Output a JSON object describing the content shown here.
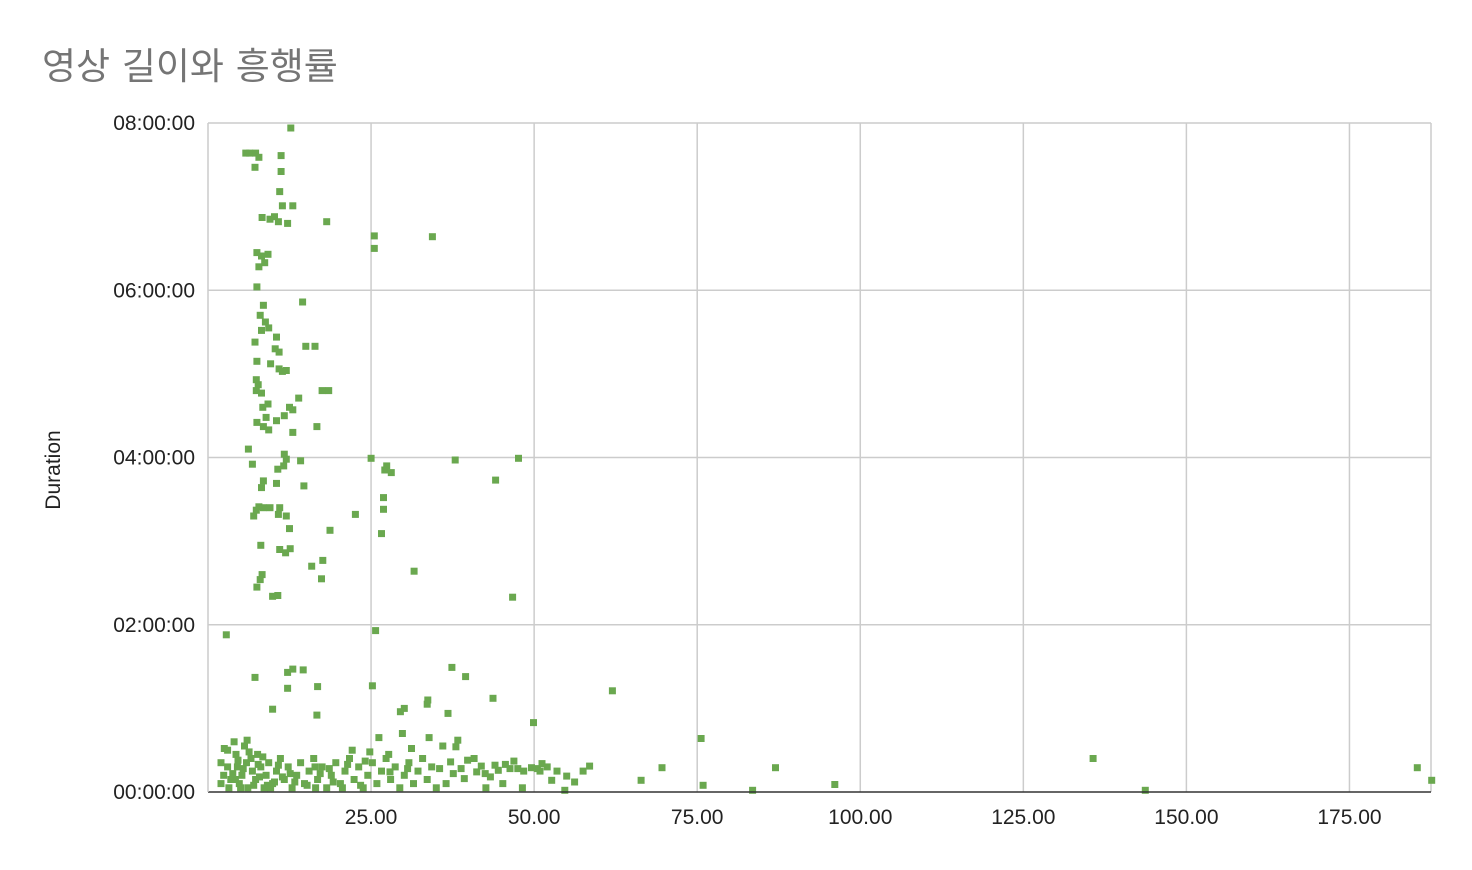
{
  "chart_data": {
    "type": "scatter",
    "title": "영상 길이와 흥행률",
    "xlabel": "",
    "ylabel": "Duration",
    "xlim": [
      0,
      187.5
    ],
    "ylim": [
      0,
      8
    ],
    "x_tick_labels": [
      "25.00",
      "50.00",
      "75.00",
      "100.00",
      "125.00",
      "150.00",
      "175.00"
    ],
    "y_tick_labels": [
      "00:00:00",
      "02:00:00",
      "04:00:00",
      "06:00:00",
      "08:00:00"
    ],
    "grid": true,
    "legend": "none",
    "marker_color": "#6aa84f",
    "series": [
      {
        "values": [
          [
            5.8,
            7.64
          ],
          [
            6.4,
            7.64
          ],
          [
            7.3,
            7.64
          ],
          [
            7.8,
            7.59
          ],
          [
            7.2,
            7.47
          ],
          [
            11.2,
            7.61
          ],
          [
            11.2,
            7.42
          ],
          [
            12.7,
            7.94
          ],
          [
            11,
            7.18
          ],
          [
            11.4,
            7.01
          ],
          [
            13,
            7.01
          ],
          [
            8.3,
            6.87
          ],
          [
            9.5,
            6.85
          ],
          [
            10.2,
            6.88
          ],
          [
            10.8,
            6.82
          ],
          [
            12.2,
            6.8
          ],
          [
            18.2,
            6.82
          ],
          [
            25.5,
            6.65
          ],
          [
            25.5,
            6.5
          ],
          [
            34.4,
            6.64
          ],
          [
            7.5,
            6.45
          ],
          [
            8.2,
            6.41
          ],
          [
            9.2,
            6.43
          ],
          [
            8.7,
            6.33
          ],
          [
            7.8,
            6.28
          ],
          [
            7.5,
            6.04
          ],
          [
            8.5,
            5.82
          ],
          [
            14.5,
            5.86
          ],
          [
            8,
            5.7
          ],
          [
            8.8,
            5.62
          ],
          [
            8.2,
            5.52
          ],
          [
            9.3,
            5.55
          ],
          [
            7.2,
            5.38
          ],
          [
            10.5,
            5.44
          ],
          [
            10.3,
            5.3
          ],
          [
            10.9,
            5.26
          ],
          [
            15,
            5.33
          ],
          [
            16.4,
            5.33
          ],
          [
            7.5,
            5.15
          ],
          [
            9.6,
            5.12
          ],
          [
            10.9,
            5.06
          ],
          [
            11.4,
            5.03
          ],
          [
            12,
            5.04
          ],
          [
            7.4,
            4.93
          ],
          [
            7.7,
            4.87
          ],
          [
            7.4,
            4.8
          ],
          [
            8.2,
            4.77
          ],
          [
            17.5,
            4.8
          ],
          [
            18.5,
            4.8
          ],
          [
            13.9,
            4.71
          ],
          [
            8.4,
            4.6
          ],
          [
            9.2,
            4.64
          ],
          [
            12.5,
            4.6
          ],
          [
            13,
            4.57
          ],
          [
            8.9,
            4.48
          ],
          [
            10.5,
            4.44
          ],
          [
            11.7,
            4.5
          ],
          [
            7.5,
            4.42
          ],
          [
            8.5,
            4.37
          ],
          [
            9.3,
            4.33
          ],
          [
            13,
            4.3
          ],
          [
            16.7,
            4.37
          ],
          [
            6.2,
            4.1
          ],
          [
            11.7,
            4.04
          ],
          [
            12,
            3.98
          ],
          [
            14.2,
            3.96
          ],
          [
            6.8,
            3.92
          ],
          [
            10.7,
            3.86
          ],
          [
            11.6,
            3.9
          ],
          [
            25,
            3.99
          ],
          [
            27.4,
            3.9
          ],
          [
            27.1,
            3.85
          ],
          [
            28.1,
            3.82
          ],
          [
            37.9,
            3.97
          ],
          [
            47.6,
            3.99
          ],
          [
            8.5,
            3.72
          ],
          [
            8.2,
            3.64
          ],
          [
            10.5,
            3.69
          ],
          [
            14.7,
            3.66
          ],
          [
            44.1,
            3.73
          ],
          [
            26.9,
            3.52
          ],
          [
            7.8,
            3.41
          ],
          [
            8.5,
            3.4
          ],
          [
            9.5,
            3.4
          ],
          [
            11,
            3.4
          ],
          [
            7,
            3.3
          ],
          [
            7.4,
            3.37
          ],
          [
            10.8,
            3.32
          ],
          [
            12,
            3.3
          ],
          [
            22.6,
            3.32
          ],
          [
            26.9,
            3.38
          ],
          [
            12.5,
            3.15
          ],
          [
            18.7,
            3.13
          ],
          [
            26.6,
            3.09
          ],
          [
            8.1,
            2.95
          ],
          [
            11,
            2.9
          ],
          [
            11.9,
            2.86
          ],
          [
            12.6,
            2.91
          ],
          [
            17.6,
            2.77
          ],
          [
            15.9,
            2.7
          ],
          [
            31.6,
            2.64
          ],
          [
            8.3,
            2.6
          ],
          [
            8,
            2.54
          ],
          [
            17.4,
            2.55
          ],
          [
            7.5,
            2.45
          ],
          [
            9.9,
            2.34
          ],
          [
            10.7,
            2.35
          ],
          [
            46.7,
            2.33
          ],
          [
            25.7,
            1.93
          ],
          [
            2.8,
            1.88
          ],
          [
            13,
            1.47
          ],
          [
            12.2,
            1.43
          ],
          [
            14.6,
            1.46
          ],
          [
            37.4,
            1.49
          ],
          [
            7.2,
            1.37
          ],
          [
            39.5,
            1.38
          ],
          [
            25.2,
            1.27
          ],
          [
            12.2,
            1.24
          ],
          [
            16.8,
            1.26
          ],
          [
            62,
            1.21
          ],
          [
            43.7,
            1.12
          ],
          [
            33.7,
            1.1
          ],
          [
            33.6,
            1.05
          ],
          [
            30.1,
            1
          ],
          [
            29.5,
            0.96
          ],
          [
            9.9,
            0.99
          ],
          [
            16.7,
            0.92
          ],
          [
            36.8,
            0.94
          ],
          [
            49.9,
            0.83
          ],
          [
            75.6,
            0.64
          ],
          [
            135.7,
            0.4
          ],
          [
            87,
            0.29
          ],
          [
            96.1,
            0.09
          ],
          [
            143.7,
            0.02
          ],
          [
            185.4,
            0.29
          ],
          [
            187.6,
            0.14
          ],
          [
            2,
            0.35
          ],
          [
            2.4,
            0.2
          ],
          [
            2,
            0.1
          ],
          [
            3,
            0.5
          ],
          [
            3,
            0.3
          ],
          [
            3.5,
            0.15
          ],
          [
            4,
            0.6
          ],
          [
            4.3,
            0.45
          ],
          [
            4.5,
            0.3
          ],
          [
            4.8,
            0.1
          ],
          [
            5.2,
            0.2
          ],
          [
            5.6,
            0.55
          ],
          [
            5.9,
            0.35
          ],
          [
            6.1,
            0.05
          ],
          [
            6.6,
            0.4
          ],
          [
            6.8,
            0.25
          ],
          [
            7.3,
            0.15
          ],
          [
            7.6,
            0.45
          ],
          [
            8.1,
            0.3
          ],
          [
            8.6,
            0.05
          ],
          [
            8.9,
            0.2
          ],
          [
            9.3,
            0.35
          ],
          [
            9.9,
            0.1
          ],
          [
            10.5,
            0.25
          ],
          [
            11.1,
            0.4
          ],
          [
            11.7,
            0.15
          ],
          [
            12.3,
            0.3
          ],
          [
            12.9,
            0.05
          ],
          [
            13.6,
            0.2
          ],
          [
            14.2,
            0.35
          ],
          [
            14.8,
            0.1
          ],
          [
            15.5,
            0.25
          ],
          [
            16.2,
            0.4
          ],
          [
            16.8,
            0.15
          ],
          [
            17.5,
            0.3
          ],
          [
            18.2,
            0.05
          ],
          [
            18.9,
            0.2
          ],
          [
            19.6,
            0.35
          ],
          [
            20.3,
            0.1
          ],
          [
            21,
            0.25
          ],
          [
            21.7,
            0.4
          ],
          [
            22.4,
            0.15
          ],
          [
            23.1,
            0.3
          ],
          [
            23.8,
            0.05
          ],
          [
            24.5,
            0.2
          ],
          [
            25.2,
            0.35
          ],
          [
            25.9,
            0.1
          ],
          [
            26.6,
            0.25
          ],
          [
            27.3,
            0.4
          ],
          [
            28,
            0.15
          ],
          [
            28.7,
            0.3
          ],
          [
            29.4,
            0.05
          ],
          [
            30.1,
            0.2
          ],
          [
            30.8,
            0.35
          ],
          [
            31.5,
            0.1
          ],
          [
            32.2,
            0.25
          ],
          [
            32.9,
            0.4
          ],
          [
            33.6,
            0.15
          ],
          [
            34.3,
            0.3
          ],
          [
            35,
            0.05
          ],
          [
            3.2,
            0.05
          ],
          [
            3.8,
            0.22
          ],
          [
            4.6,
            0.38
          ],
          [
            5,
            0.05
          ],
          [
            5.4,
            0.28
          ],
          [
            6.3,
            0.48
          ],
          [
            7,
            0.08
          ],
          [
            7.9,
            0.18
          ],
          [
            8.4,
            0.42
          ],
          [
            9.6,
            0.05
          ],
          [
            10.2,
            0.12
          ],
          [
            10.8,
            0.32
          ],
          [
            2.5,
            0.52
          ],
          [
            4.2,
            0.15
          ],
          [
            6,
            0.62
          ],
          [
            7.7,
            0.33
          ],
          [
            9.1,
            0.08
          ],
          [
            11.4,
            0.18
          ],
          [
            12.6,
            0.22
          ],
          [
            13.3,
            0.12
          ],
          [
            15.2,
            0.08
          ],
          [
            16.5,
            0.05
          ],
          [
            17.2,
            0.22
          ],
          [
            19.2,
            0.12
          ],
          [
            20.6,
            0.05
          ],
          [
            22.1,
            0.5
          ],
          [
            23.4,
            0.08
          ],
          [
            26.2,
            0.65
          ],
          [
            24.8,
            0.48
          ],
          [
            27.7,
            0.45
          ],
          [
            29.8,
            0.7
          ],
          [
            31.2,
            0.52
          ],
          [
            33.9,
            0.65
          ],
          [
            36,
            0.55
          ],
          [
            37.2,
            0.36
          ],
          [
            38,
            0.54
          ],
          [
            38.3,
            0.62
          ],
          [
            39.8,
            0.38
          ],
          [
            41.2,
            0.24
          ],
          [
            42.5,
            0.22
          ],
          [
            44.5,
            0.26
          ],
          [
            45.6,
            0.33
          ],
          [
            46.3,
            0.28
          ],
          [
            47.5,
            0.28
          ],
          [
            48.4,
            0.25
          ],
          [
            49.6,
            0.29
          ],
          [
            50.5,
            0.28
          ],
          [
            51.2,
            0.34
          ],
          [
            52,
            0.3
          ],
          [
            53.5,
            0.25
          ],
          [
            55,
            0.19
          ],
          [
            57.5,
            0.25
          ],
          [
            58.5,
            0.31
          ],
          [
            42.6,
            0.05
          ],
          [
            45.2,
            0.1
          ],
          [
            48.2,
            0.05
          ],
          [
            52.7,
            0.14
          ],
          [
            56.2,
            0.12
          ],
          [
            54.7,
            0.02
          ],
          [
            66.4,
            0.14
          ],
          [
            69.6,
            0.29
          ],
          [
            75.9,
            0.08
          ],
          [
            83.5,
            0.02
          ],
          [
            44,
            0.32
          ],
          [
            40.8,
            0.4
          ],
          [
            36.5,
            0.1
          ],
          [
            35.5,
            0.28
          ],
          [
            37.6,
            0.22
          ],
          [
            39.3,
            0.16
          ],
          [
            41.9,
            0.31
          ],
          [
            43.3,
            0.18
          ],
          [
            46.9,
            0.37
          ],
          [
            50.9,
            0.25
          ],
          [
            38.8,
            0.28
          ],
          [
            16.4,
            0.3
          ],
          [
            18.6,
            0.28
          ],
          [
            21.4,
            0.33
          ],
          [
            24.1,
            0.37
          ],
          [
            27.9,
            0.24
          ],
          [
            30.6,
            0.28
          ]
        ]
      }
    ]
  }
}
